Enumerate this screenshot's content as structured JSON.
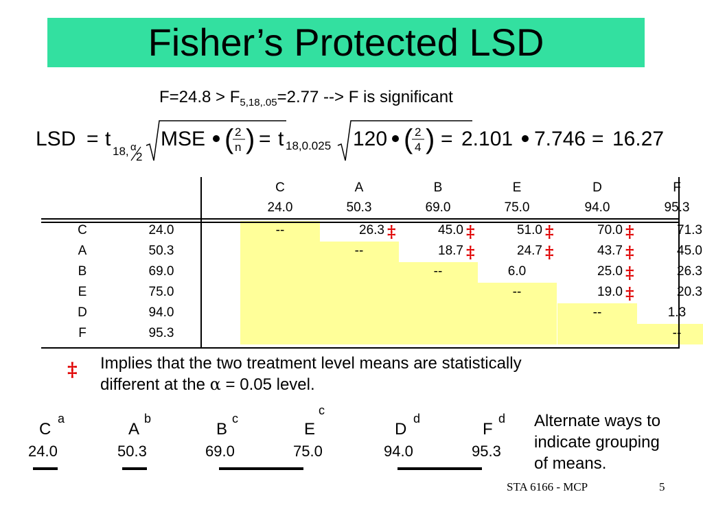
{
  "title": "Fisher’s Protected LSD",
  "f_statistic": {
    "prefix": "F=24.8 > F",
    "subscript": "5,18,.05",
    "suffix": "=2.77 --> F is significant"
  },
  "lsd_formula": {
    "lhs": "LSD",
    "t1": "t",
    "t1_sub_a": "18,",
    "t1_sub_alpha": "α",
    "t1_sub_2": "2",
    "mse": "MSE",
    "frac1_num": "2",
    "frac1_den": "n",
    "t2": "t",
    "t2_sub": "18,0.025",
    "val_120": "120",
    "frac2_num": "2",
    "frac2_den": "4",
    "result": "2.101",
    "times": "7.746",
    "final": "16.27"
  },
  "table": {
    "columns": [
      {
        "label": "C",
        "mean": "24.0"
      },
      {
        "label": "A",
        "mean": "50.3"
      },
      {
        "label": "B",
        "mean": "69.0"
      },
      {
        "label": "E",
        "mean": "75.0"
      },
      {
        "label": "D",
        "mean": "94.0"
      },
      {
        "label": "F",
        "mean": "95.3"
      }
    ],
    "rows": [
      {
        "label": "C",
        "mean": "24.0",
        "cells": [
          "--",
          "26.3",
          "45.0",
          "51.0",
          "70.0",
          "71.3"
        ]
      },
      {
        "label": "A",
        "mean": "50.3",
        "cells": [
          "",
          "--",
          "18.7",
          "24.7",
          "43.7",
          "45.0"
        ]
      },
      {
        "label": "B",
        "mean": "69.0",
        "cells": [
          "",
          "",
          "--",
          "6.0",
          "25.0",
          "26.3"
        ]
      },
      {
        "label": "E",
        "mean": "75.0",
        "cells": [
          "",
          "",
          "",
          "--",
          "19.0",
          "20.3"
        ]
      },
      {
        "label": "D",
        "mean": "94.0",
        "cells": [
          "",
          "",
          "",
          "",
          "--",
          "1.3"
        ]
      },
      {
        "label": "F",
        "mean": "95.3",
        "cells": [
          "",
          "",
          "",
          "",
          "",
          "--"
        ]
      }
    ],
    "significance_mark": "‡",
    "significant": [
      [
        0,
        1
      ],
      [
        0,
        2
      ],
      [
        0,
        3
      ],
      [
        0,
        4
      ],
      [
        0,
        5
      ],
      [
        1,
        2
      ],
      [
        1,
        3
      ],
      [
        1,
        4
      ],
      [
        1,
        5
      ],
      [
        2,
        4
      ],
      [
        2,
        5
      ],
      [
        3,
        4
      ],
      [
        3,
        5
      ]
    ]
  },
  "legend": {
    "mark": "‡",
    "line1": "Implies that the two treatment level means are statistically",
    "line2_a": "different at the ",
    "line2_alpha": "α",
    "line2_b": " = 0.05 level."
  },
  "grouping": {
    "items": [
      {
        "letter": "C",
        "sup": "a",
        "mean": "24.0"
      },
      {
        "letter": "A",
        "sup": "b",
        "mean": "50.3"
      },
      {
        "letter": "B",
        "sup": "c",
        "mean": "69.0"
      },
      {
        "letter": "E",
        "sup": "c",
        "mean": "75.0"
      },
      {
        "letter": "D",
        "sup": "d",
        "mean": "94.0"
      },
      {
        "letter": "F",
        "sup": "d",
        "mean": "95.3"
      }
    ],
    "note_lines": [
      "Alternate ways to",
      "indicate grouping",
      "of means."
    ]
  },
  "footer": {
    "course": "STA 6166 - MCP",
    "page": "5"
  },
  "colors": {
    "title_bg": "#33e0a0",
    "shade": "#ffff99",
    "mark": "#e00000"
  }
}
